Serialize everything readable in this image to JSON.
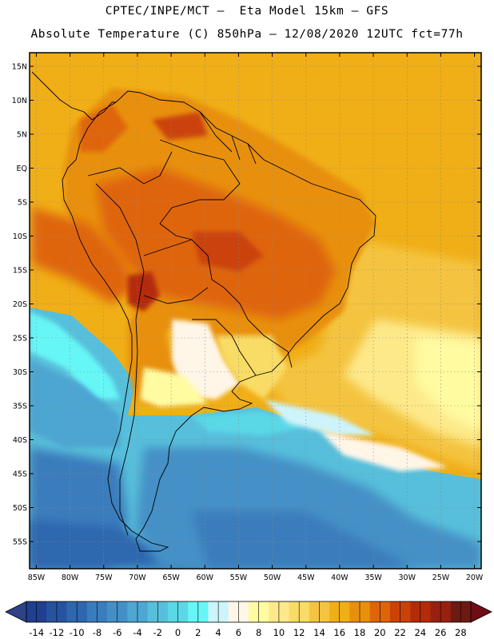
{
  "title_line1": "CPTEC/INPE/MCT –  Eta Model 15km – GFS",
  "title_line2": "Absolute Temperature (C) 850hPa – 12/08/2020 12UTC fct=77h",
  "map": {
    "lon_range": [
      -86,
      -19
    ],
    "lat_range": [
      -59,
      17
    ],
    "lat_ticks": [
      {
        "value": 15,
        "label": "15N"
      },
      {
        "value": 10,
        "label": "10N"
      },
      {
        "value": 5,
        "label": "5N"
      },
      {
        "value": 0,
        "label": "EQ"
      },
      {
        "value": -5,
        "label": "5S"
      },
      {
        "value": -10,
        "label": "10S"
      },
      {
        "value": -15,
        "label": "15S"
      },
      {
        "value": -20,
        "label": "20S"
      },
      {
        "value": -25,
        "label": "25S"
      },
      {
        "value": -30,
        "label": "30S"
      },
      {
        "value": -35,
        "label": "35S"
      },
      {
        "value": -40,
        "label": "40S"
      },
      {
        "value": -45,
        "label": "45S"
      },
      {
        "value": -50,
        "label": "50S"
      },
      {
        "value": -55,
        "label": "55S"
      }
    ],
    "lon_ticks": [
      {
        "value": -85,
        "label": "85W"
      },
      {
        "value": -80,
        "label": "80W"
      },
      {
        "value": -75,
        "label": "75W"
      },
      {
        "value": -70,
        "label": "70W"
      },
      {
        "value": -65,
        "label": "65W"
      },
      {
        "value": -60,
        "label": "60W"
      },
      {
        "value": -55,
        "label": "55W"
      },
      {
        "value": -50,
        "label": "50W"
      },
      {
        "value": -45,
        "label": "45W"
      },
      {
        "value": -40,
        "label": "40W"
      },
      {
        "value": -35,
        "label": "35W"
      },
      {
        "value": -30,
        "label": "30W"
      },
      {
        "value": -25,
        "label": "25W"
      },
      {
        "value": -20,
        "label": "20W"
      }
    ]
  },
  "colorbar": {
    "labels": [
      "-14",
      "-12",
      "-10",
      "-8",
      "-6",
      "-4",
      "-2",
      "0",
      "2",
      "4",
      "6",
      "8",
      "10",
      "12",
      "14",
      "16",
      "18",
      "20",
      "22",
      "24",
      "26",
      "28"
    ],
    "under_color": "#2d4288",
    "over_color": "#6e0d15",
    "colors": [
      "#1f3f90",
      "#2653a0",
      "#2e67af",
      "#3a7dbc",
      "#4490c6",
      "#4ea6d2",
      "#57bfdb",
      "#5ad8e6",
      "#66f6f6",
      "#cdf4fb",
      "#fff6e8",
      "#fffba0",
      "#fde98a",
      "#f9dc65",
      "#f4c440",
      "#f0ae17",
      "#e8900c",
      "#df6508",
      "#cb4207",
      "#b42c07",
      "#992010",
      "#6e1911"
    ]
  }
}
